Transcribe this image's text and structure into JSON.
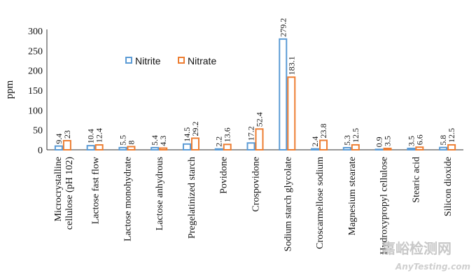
{
  "chart_data": {
    "type": "bar",
    "ylabel": "ppm",
    "ylim": [
      0,
      300
    ],
    "yticks": [
      "0",
      "50",
      "100",
      "150",
      "200",
      "250",
      "300"
    ],
    "grid": false,
    "legend_position": "top-center",
    "categories": [
      [
        "Microcrystalline",
        "cellulose (pH 102)"
      ],
      [
        "Lactose fast flow"
      ],
      [
        "Lactose monohydrate"
      ],
      [
        "Lactose anhydrous"
      ],
      [
        "Pregelatinized starch"
      ],
      [
        "Povidone"
      ],
      [
        "Crospovidone"
      ],
      [
        "Sodium starch glycolate"
      ],
      [
        "Croscarmellose sodium"
      ],
      [
        "Magnesium stearate"
      ],
      [
        "Hydroxypropyl cellulose"
      ],
      [
        "Stearic acid"
      ],
      [
        "Silicon dioxide"
      ]
    ],
    "series": [
      {
        "name": "Nitrite",
        "color": "#5b9bd5",
        "values": [
          9.4,
          10.4,
          5.5,
          5.4,
          14.5,
          2.2,
          17.2,
          279.2,
          2.4,
          5.3,
          0.9,
          3.5,
          5.8
        ],
        "labels": [
          "9.4",
          "10.4",
          "5.5",
          "5.4",
          "14.5",
          "2.2",
          "17.2",
          "279.2",
          "2.4",
          "5.3",
          "0.9",
          "3.5",
          "5.8"
        ]
      },
      {
        "name": "Nitrate",
        "color": "#ed7d31",
        "values": [
          23,
          12.4,
          8,
          4.3,
          29.2,
          13.6,
          52.4,
          183.1,
          23.8,
          12.5,
          3.5,
          6.6,
          12.5
        ],
        "labels": [
          "23",
          "12.4",
          "8",
          "4.3",
          "29.2",
          "13.6",
          "52.4",
          "183.1",
          "23.8",
          "12.5",
          "3.5",
          "6.6",
          "12.5"
        ]
      }
    ]
  },
  "watermark": {
    "main": "嘉峪检测网",
    "sub": "AnyTesting.com"
  }
}
